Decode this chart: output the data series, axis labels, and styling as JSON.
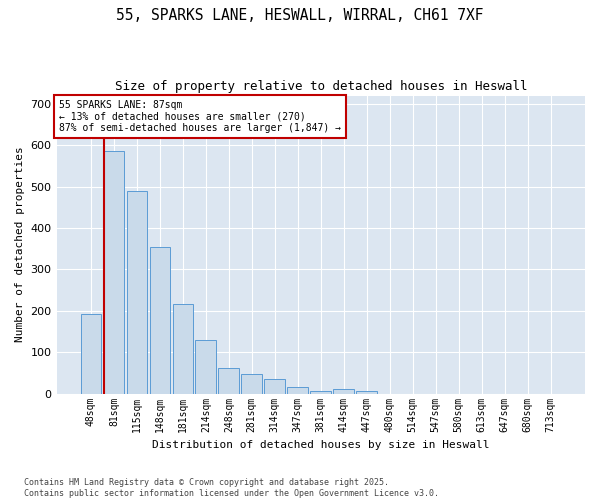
{
  "title": "55, SPARKS LANE, HESWALL, WIRRAL, CH61 7XF",
  "subtitle": "Size of property relative to detached houses in Heswall",
  "xlabel": "Distribution of detached houses by size in Heswall",
  "ylabel": "Number of detached properties",
  "bar_labels": [
    "48sqm",
    "81sqm",
    "115sqm",
    "148sqm",
    "181sqm",
    "214sqm",
    "248sqm",
    "281sqm",
    "314sqm",
    "347sqm",
    "381sqm",
    "414sqm",
    "447sqm",
    "480sqm",
    "514sqm",
    "547sqm",
    "580sqm",
    "613sqm",
    "647sqm",
    "680sqm",
    "713sqm"
  ],
  "bar_values": [
    193,
    585,
    490,
    355,
    217,
    130,
    63,
    48,
    36,
    15,
    7,
    10,
    7,
    0,
    0,
    0,
    0,
    0,
    0,
    0,
    0
  ],
  "bar_color": "#c9daea",
  "bar_edge_color": "#5b9bd5",
  "marker_line_color": "#c00000",
  "annotation_line1": "55 SPARKS LANE: 87sqm",
  "annotation_line2": "← 13% of detached houses are smaller (270)",
  "annotation_line3": "87% of semi-detached houses are larger (1,847) →",
  "annotation_box_edge_color": "#c00000",
  "ylim": [
    0,
    720
  ],
  "yticks": [
    0,
    100,
    200,
    300,
    400,
    500,
    600,
    700
  ],
  "fig_background": "#ffffff",
  "axes_background": "#dce6f1",
  "grid_color": "#ffffff",
  "footer_line1": "Contains HM Land Registry data © Crown copyright and database right 2025.",
  "footer_line2": "Contains public sector information licensed under the Open Government Licence v3.0."
}
